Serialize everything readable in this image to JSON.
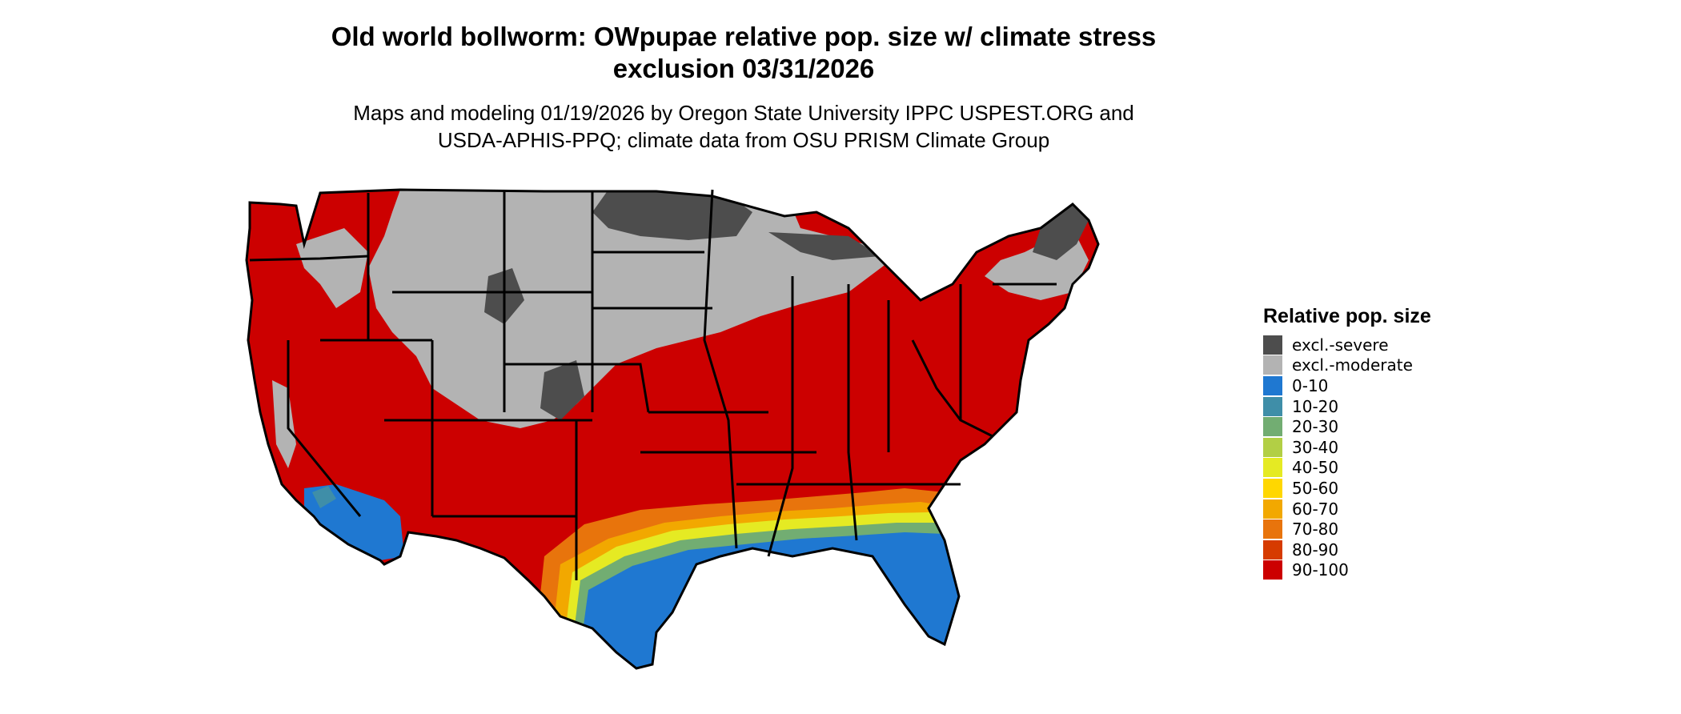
{
  "title_line1": "Old world bollworm: OWpupae relative pop. size w/ climate stress",
  "title_line2": "exclusion 03/31/2026",
  "subtitle_line1": "Maps and modeling 01/19/2026 by Oregon State University IPPC USPEST.ORG and",
  "subtitle_line2": "USDA-APHIS-PPQ; climate data from OSU PRISM Climate Group",
  "legend": {
    "title": "Relative pop. size",
    "items": [
      {
        "label": "excl.-severe",
        "color": "#4d4d4d"
      },
      {
        "label": "excl.-moderate",
        "color": "#b3b3b3"
      },
      {
        "label": "0-10",
        "color": "#1f78d1"
      },
      {
        "label": "10-20",
        "color": "#3f8ea8"
      },
      {
        "label": "20-30",
        "color": "#72ad72"
      },
      {
        "label": "30-40",
        "color": "#b2cf45"
      },
      {
        "label": "40-50",
        "color": "#e5ea23"
      },
      {
        "label": "50-60",
        "color": "#ffd700"
      },
      {
        "label": "60-70",
        "color": "#f2a800"
      },
      {
        "label": "70-80",
        "color": "#e8740c"
      },
      {
        "label": "80-90",
        "color": "#d63b00"
      },
      {
        "label": "90-100",
        "color": "#cc0000"
      }
    ]
  }
}
